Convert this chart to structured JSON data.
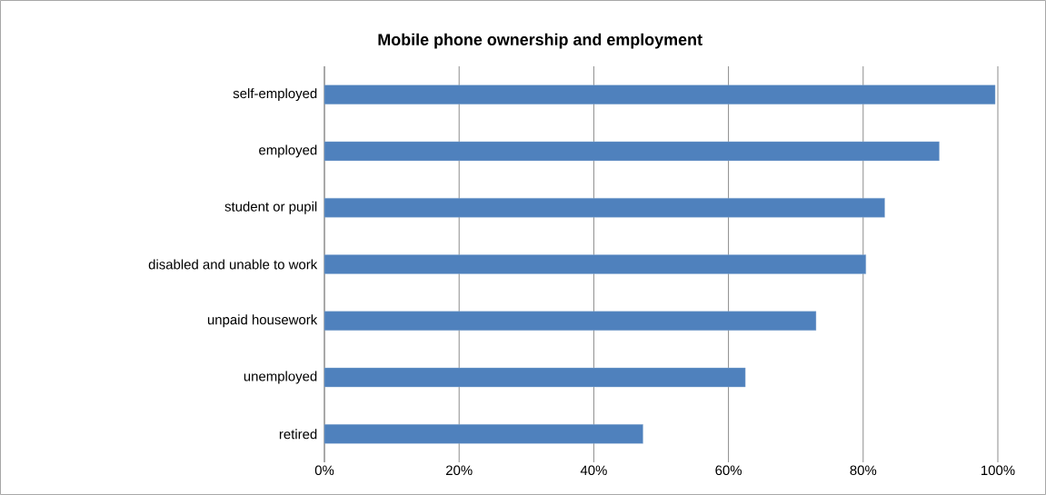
{
  "chart_data": {
    "type": "bar",
    "orientation": "horizontal",
    "title": "Mobile phone ownership and employment",
    "categories": [
      "self-employed",
      "employed",
      "student or pupil",
      "disabled and unable to work",
      "unpaid housework",
      "unemployed",
      "retired"
    ],
    "values": [
      99.6,
      91.3,
      83.2,
      80.4,
      73.0,
      62.5,
      47.3
    ],
    "color": "#4f81bd",
    "xlim": [
      0,
      100
    ],
    "xticks": [
      {
        "value": 0,
        "label": "0%"
      },
      {
        "value": 20,
        "label": "20%"
      },
      {
        "value": 40,
        "label": "40%"
      },
      {
        "value": 60,
        "label": "60%"
      },
      {
        "value": 80,
        "label": "80%"
      },
      {
        "value": 100,
        "label": "100%"
      }
    ],
    "grid": "x"
  }
}
